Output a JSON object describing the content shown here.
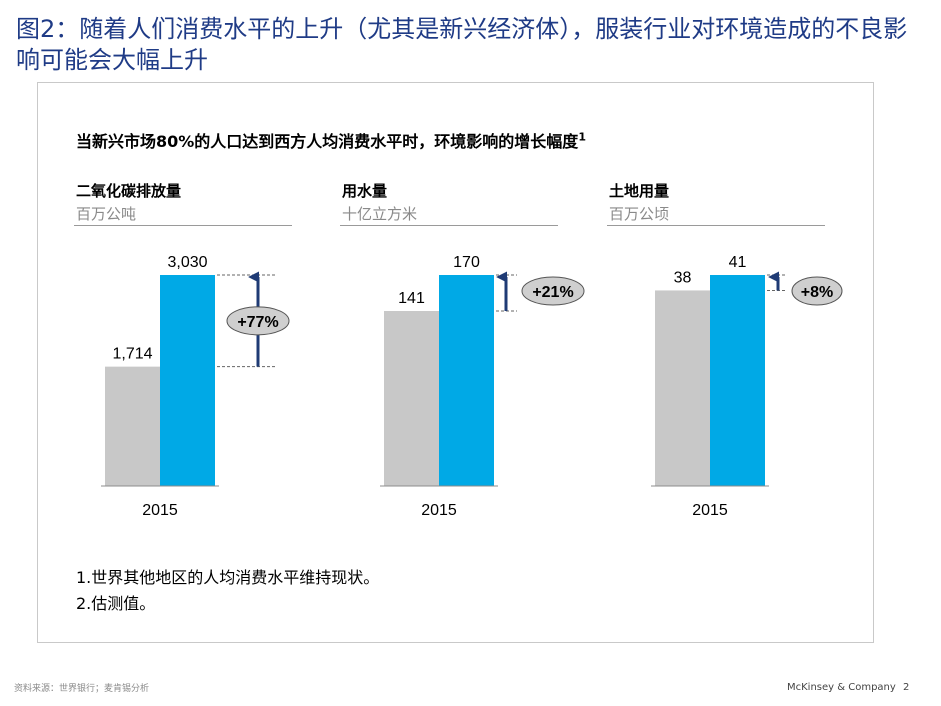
{
  "slide": {
    "title": "图2：随着人们消费水平的上升（尤其是新兴经济体），服装行业对环境造成的不良影响可能会大幅上升",
    "subtitle": "当新兴市场80%的人口达到西方人均消费水平时，环境影响的增长幅度",
    "subtitle_sup": "1",
    "footnotes": [
      "1.世界其他地区的人均消费水平维持现状。",
      "2.估测值。"
    ],
    "source": "资料来源：世界银行；麦肯锡分析",
    "brand": "McKinsey & Company",
    "page": "2"
  },
  "colors": {
    "baseline_bar": "#c8c8c8",
    "projected_bar": "#00A9E6",
    "arrow": "#1F3B75",
    "badge": "#cfcfcf",
    "title": "#1F3B86"
  },
  "chart_data": [
    {
      "type": "bar",
      "title": "二氧化碳排放量",
      "unit": "百万公吨",
      "category": "2015",
      "series": [
        {
          "value": 1714,
          "label": "1,714"
        },
        {
          "value": 3030,
          "label": "3,030"
        }
      ],
      "change": "+77%"
    },
    {
      "type": "bar",
      "title": "用水量",
      "unit": "十亿立方米",
      "category": "2015",
      "series": [
        {
          "value": 141,
          "label": "141"
        },
        {
          "value": 170,
          "label": "170"
        }
      ],
      "change": "+21%"
    },
    {
      "type": "bar",
      "title": "土地用量",
      "unit": "百万公顷",
      "category": "2015",
      "series": [
        {
          "value": 38,
          "label": "38"
        },
        {
          "value": 41,
          "label": "41"
        }
      ],
      "change": "+8%"
    }
  ]
}
